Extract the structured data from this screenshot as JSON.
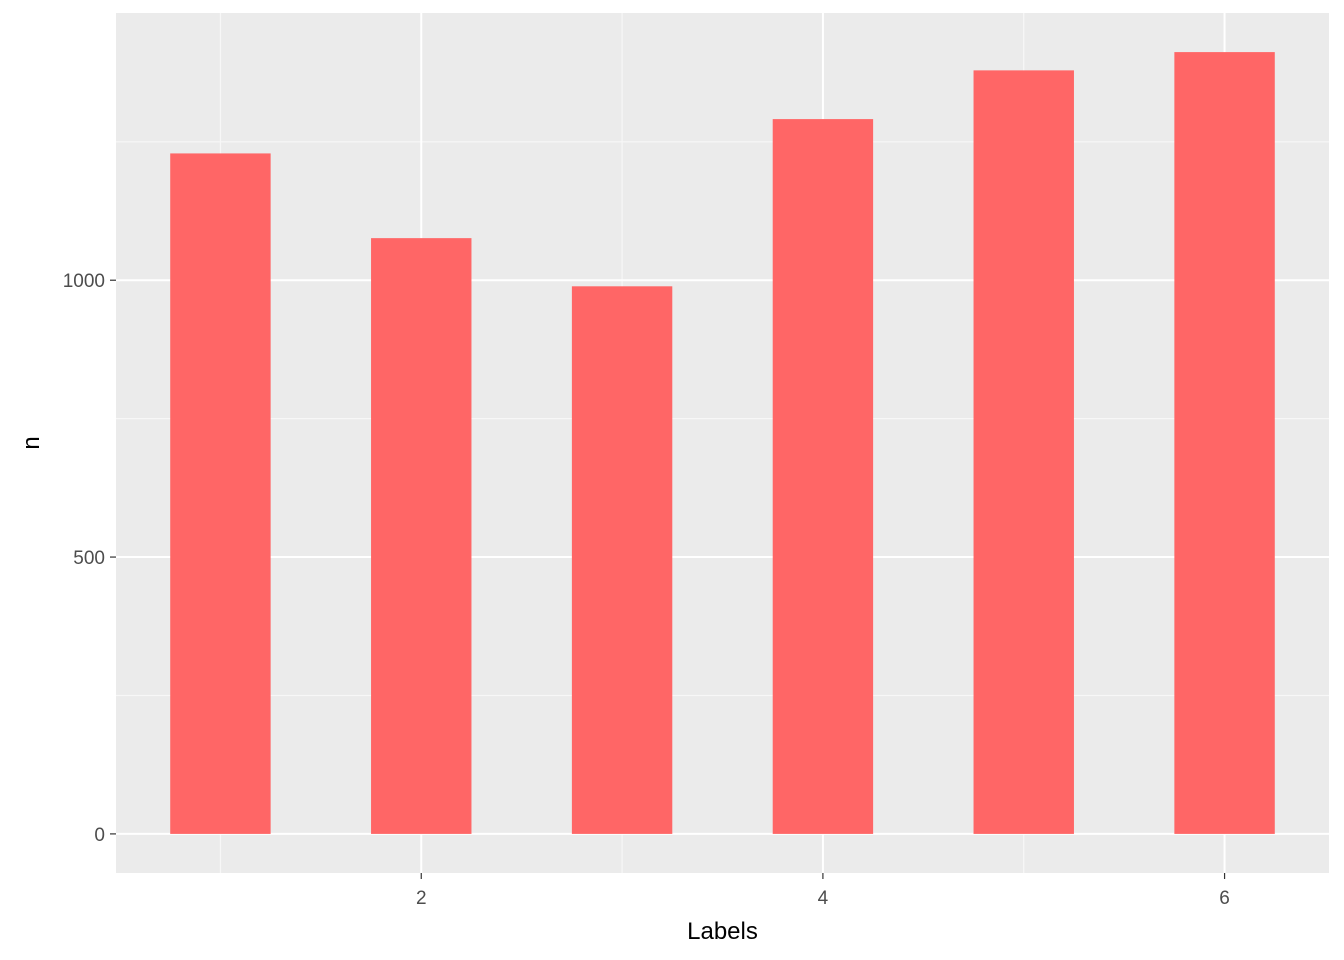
{
  "chart_data": {
    "type": "bar",
    "x": [
      1,
      2,
      3,
      4,
      5,
      6
    ],
    "values": [
      1229,
      1076,
      989,
      1291,
      1379,
      1412
    ],
    "xlabel": "Labels",
    "ylabel": "n",
    "xlim": [
      0.48,
      6.52
    ],
    "ylim": [
      -70.6,
      1482.6
    ],
    "x_ticks": [
      2,
      4,
      6
    ],
    "y_ticks": [
      0,
      500,
      1000
    ],
    "x_tick_labels": [
      "2",
      "4",
      "6"
    ],
    "y_tick_labels": [
      "0",
      "500",
      "1000"
    ],
    "bar_width": 0.5,
    "grid": true,
    "colors": {
      "bar": "#ff6666",
      "panel": "#ebebeb",
      "grid_major": "#ffffff",
      "grid_minor": "#f7f7f7",
      "tick": "#333333"
    }
  }
}
